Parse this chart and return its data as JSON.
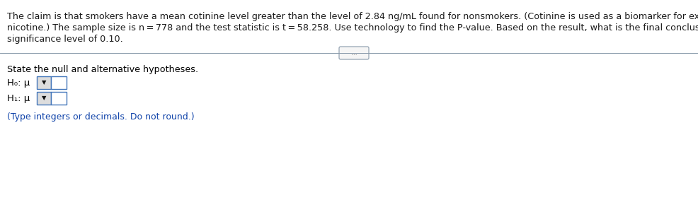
{
  "paragraph_line1": "The claim is that smokers have a mean cotinine level greater than the level of 2.84 ng/mL found for nonsmokers. (Cotinine is used as a biomarker for exposure to",
  "paragraph_line2": "nicotine.) The sample size is n = 778 and the test statistic is t = 58.258. Use technology to find the P-value. Based on the result, what is the final conclusion? Use a",
  "paragraph_line3": "significance level of 0.10.",
  "paragraph_color": "#1a1a1a",
  "highlight_color": "#cc2200",
  "section_label": "State the null and alternative hypotheses.",
  "section_label_color": "#000000",
  "h0_label": "H₀: μ",
  "h1_label": "H₁: μ",
  "footnote": "(Type integers or decimals. Do not round.)",
  "footnote_color": "#1144aa",
  "background_color": "#ffffff",
  "font_size_paragraph": 9.2,
  "font_size_section": 9.2,
  "font_size_hypotheses": 9.5,
  "font_size_footnote": 9.0,
  "divider_color": "#8899aa",
  "divider_linewidth": 0.7,
  "dots_text": "...",
  "box_edge_color": "#4477bb",
  "dropdown_face_color": "#dddddd",
  "input_face_color": "#ffffff"
}
